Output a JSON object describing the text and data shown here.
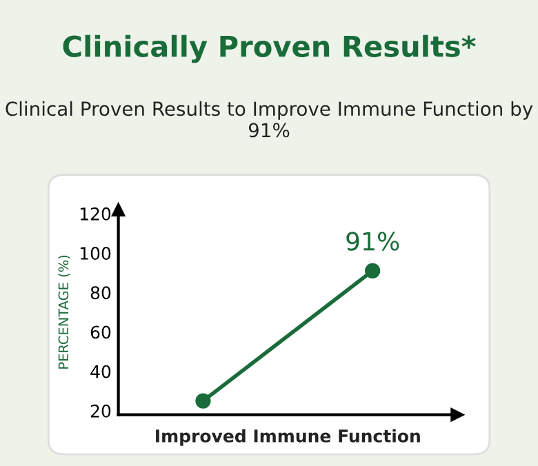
{
  "chart_data": {
    "type": "line",
    "title": "Clinically Proven Results*",
    "subtitle": "Clinical Proven Results to Improve Immune Function by 91%",
    "xlabel": "Improved Immune Function",
    "ylabel": "PERCENTAGE (%)",
    "categories": [
      null,
      null
    ],
    "series": [
      {
        "color": "#1a6b3a",
        "values": [
          25,
          91
        ],
        "value_labels": [
          null,
          "91%"
        ]
      }
    ],
    "ylim": [
      18,
      122
    ],
    "yticks": [
      20,
      40,
      60,
      80,
      100,
      120
    ],
    "marker": "circle",
    "line_style": "solid",
    "grid": false,
    "legend": false
  }
}
